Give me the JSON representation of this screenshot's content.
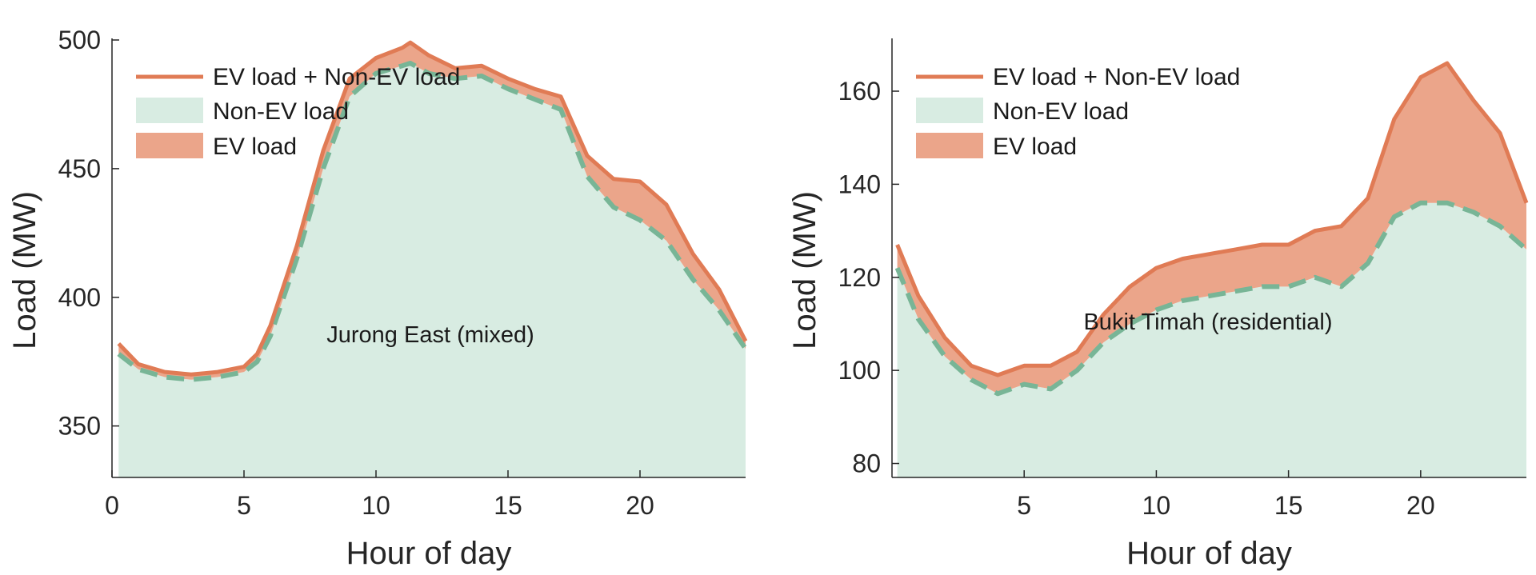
{
  "colors": {
    "ev_total_line": "#e07b55",
    "ev_fill": "#eba58a",
    "non_ev_fill": "#d8ece2",
    "non_ev_dash": "#78b596",
    "axis": "#262626"
  },
  "chart_data": [
    {
      "type": "area",
      "annotation": "Jurong East (mixed)",
      "xlabel": "Hour of day",
      "ylabel": "Load (MW)",
      "xlim": [
        0,
        24
      ],
      "ylim": [
        330,
        500
      ],
      "xticks": [
        "0",
        "5",
        "10",
        "15",
        "20"
      ],
      "yticks": [
        "350",
        "400",
        "450",
        "500"
      ],
      "legend_position": "top-left",
      "legend": [
        "EV load + Non-EV load",
        "Non-EV load",
        "EV load"
      ],
      "x": [
        0.25,
        1,
        2,
        3,
        4,
        5,
        5.5,
        6,
        7,
        8,
        9,
        10,
        11,
        11.3,
        12,
        13,
        14,
        15,
        16,
        17,
        18,
        19,
        20,
        21,
        22,
        23,
        24
      ],
      "non_ev": [
        378,
        372,
        369,
        368,
        369,
        371,
        375,
        385,
        415,
        450,
        478,
        487,
        490,
        491,
        487,
        485,
        486,
        481,
        477,
        473,
        447,
        435,
        430,
        422,
        407,
        395,
        380
      ],
      "total": [
        382,
        374,
        371,
        370,
        371,
        373,
        378,
        389,
        420,
        457,
        485,
        493,
        497,
        499,
        494,
        489,
        490,
        485,
        481,
        478,
        455,
        446,
        445,
        436,
        417,
        403,
        383
      ]
    },
    {
      "type": "area",
      "annotation": "Bukit Timah (residential)",
      "xlabel": "Hour of day",
      "ylabel": "Load (MW)",
      "xlim": [
        0,
        24
      ],
      "ylim": [
        77,
        171
      ],
      "xticks": [
        "5",
        "10",
        "15",
        "20"
      ],
      "yticks": [
        "80",
        "100",
        "120",
        "140",
        "160"
      ],
      "legend_position": "top-left",
      "legend": [
        "EV load + Non-EV load",
        "Non-EV load",
        "EV load"
      ],
      "x": [
        0.2,
        1,
        2,
        3,
        4,
        5,
        6,
        7,
        8,
        9,
        10,
        11,
        12,
        13,
        14,
        15,
        16,
        17,
        18,
        19,
        20,
        21,
        22,
        23,
        24
      ],
      "non_ev": [
        122,
        111,
        103,
        98,
        95,
        97,
        96,
        100,
        106,
        110,
        113,
        115,
        116,
        117,
        118,
        118,
        120,
        118,
        123,
        133,
        136,
        136,
        134,
        131,
        126
      ],
      "total": [
        127,
        116,
        107,
        101,
        99,
        101,
        101,
        104,
        112,
        118,
        122,
        124,
        125,
        126,
        127,
        127,
        130,
        131,
        137,
        154,
        163,
        166,
        158,
        151,
        136
      ]
    }
  ]
}
